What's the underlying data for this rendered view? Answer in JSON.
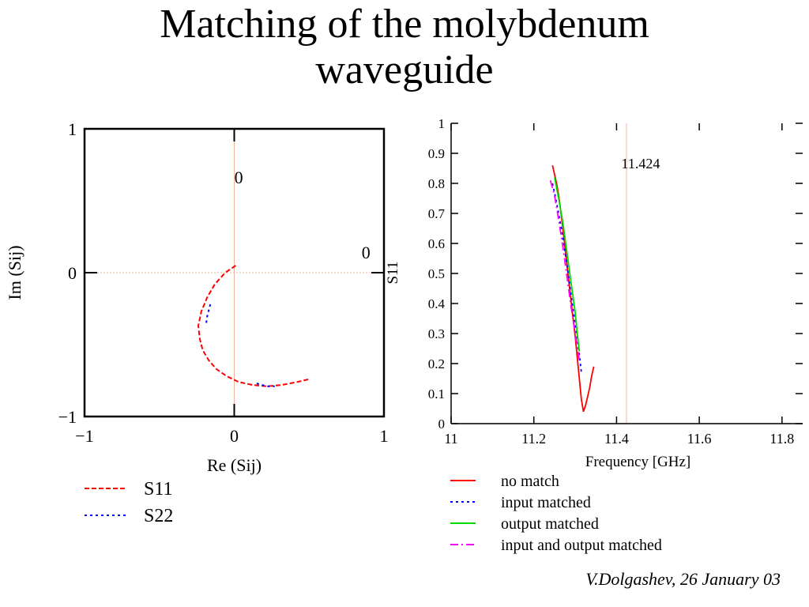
{
  "slide": {
    "title_line1": "Matching of the molybdenum",
    "title_line2": "waveguide",
    "credit": "V.Dolgashev, 26 January 03"
  },
  "chart_data": [
    {
      "type": "line",
      "xlabel": "Re (Sij)",
      "ylabel": "Im (Sij)",
      "xlim": [
        -1,
        1
      ],
      "ylim": [
        -1,
        1
      ],
      "xticks": [
        "−1",
        "0",
        "1"
      ],
      "yticks": [
        "−1",
        "0",
        "1"
      ],
      "annotations": [
        {
          "text": "0",
          "x": 0.03,
          "y": 0.62
        },
        {
          "text": "0",
          "x": 0.88,
          "y": 0.1
        }
      ],
      "colors": {
        "S11": "#ff0000",
        "S22": "#0000ff",
        "crosshair": "#f0b49a"
      },
      "series": [
        {
          "name": "S11",
          "style": "dashed",
          "x": [
            0.01,
            -0.06,
            -0.13,
            -0.18,
            -0.22,
            -0.24,
            -0.23,
            -0.21,
            -0.17,
            -0.12,
            -0.05,
            0.03,
            0.12,
            0.22,
            0.32,
            0.42,
            0.5
          ],
          "y": [
            0.05,
            0.0,
            -0.08,
            -0.17,
            -0.27,
            -0.37,
            -0.46,
            -0.54,
            -0.61,
            -0.67,
            -0.72,
            -0.76,
            -0.78,
            -0.79,
            -0.78,
            -0.76,
            -0.74
          ]
        },
        {
          "name": "S22",
          "style": "dotted",
          "x": [
            -0.16,
            -0.18,
            -0.19
          ],
          "y": [
            -0.22,
            -0.3,
            -0.37
          ]
        },
        {
          "name": "S22",
          "style": "dotted",
          "x": [
            0.15,
            0.22,
            0.27
          ],
          "y": [
            -0.77,
            -0.79,
            -0.79
          ]
        }
      ],
      "legend": {
        "placement": "bottom-left",
        "entries": [
          "S11",
          "S22"
        ]
      }
    },
    {
      "type": "line",
      "xlabel": "Frequency [GHz]",
      "ylabel": "S11",
      "xlim": [
        11,
        11.85
      ],
      "ylim": [
        0,
        1
      ],
      "xticks": [
        11,
        11.2,
        11.4,
        11.6,
        11.8
      ],
      "yticks": [
        0,
        0.1,
        0.2,
        0.3,
        0.4,
        0.5,
        0.6,
        0.7,
        0.8,
        0.9,
        1
      ],
      "marker_line": {
        "x": 11.424,
        "label": "11.424"
      },
      "series": [
        {
          "name": "no match",
          "color": "#ff0000",
          "style": "solid",
          "x": [
            11.245,
            11.25,
            11.255,
            11.26,
            11.265,
            11.27,
            11.275,
            11.28,
            11.285,
            11.29,
            11.295,
            11.3,
            11.305,
            11.31,
            11.315,
            11.32,
            11.325,
            11.33,
            11.335,
            11.34,
            11.345
          ],
          "y": [
            0.86,
            0.83,
            0.8,
            0.76,
            0.71,
            0.65,
            0.59,
            0.53,
            0.47,
            0.41,
            0.35,
            0.29,
            0.22,
            0.15,
            0.08,
            0.04,
            0.06,
            0.09,
            0.12,
            0.16,
            0.19
          ]
        },
        {
          "name": "input matched",
          "color": "#0000ff",
          "style": "dotted",
          "x": [
            11.245,
            11.25,
            11.26,
            11.27,
            11.28,
            11.29,
            11.3,
            11.31,
            11.315
          ],
          "y": [
            0.8,
            0.77,
            0.7,
            0.62,
            0.53,
            0.43,
            0.33,
            0.23,
            0.17
          ]
        },
        {
          "name": "output matched",
          "color": "#00dd00",
          "style": "solid",
          "x": [
            11.25,
            11.26,
            11.27,
            11.28,
            11.29,
            11.3,
            11.305,
            11.31
          ],
          "y": [
            0.82,
            0.75,
            0.67,
            0.57,
            0.47,
            0.37,
            0.3,
            0.24
          ]
        },
        {
          "name": "input and output matched",
          "color": "#ff00ff",
          "style": "dashdot",
          "x": [
            11.24,
            11.25,
            11.26,
            11.27,
            11.28,
            11.29,
            11.3,
            11.31
          ],
          "y": [
            0.81,
            0.76,
            0.68,
            0.59,
            0.49,
            0.39,
            0.3,
            0.21
          ]
        }
      ],
      "legend": {
        "placement": "bottom",
        "entries": [
          "no match",
          "input matched",
          "output matched",
          "input and output matched"
        ]
      }
    }
  ]
}
